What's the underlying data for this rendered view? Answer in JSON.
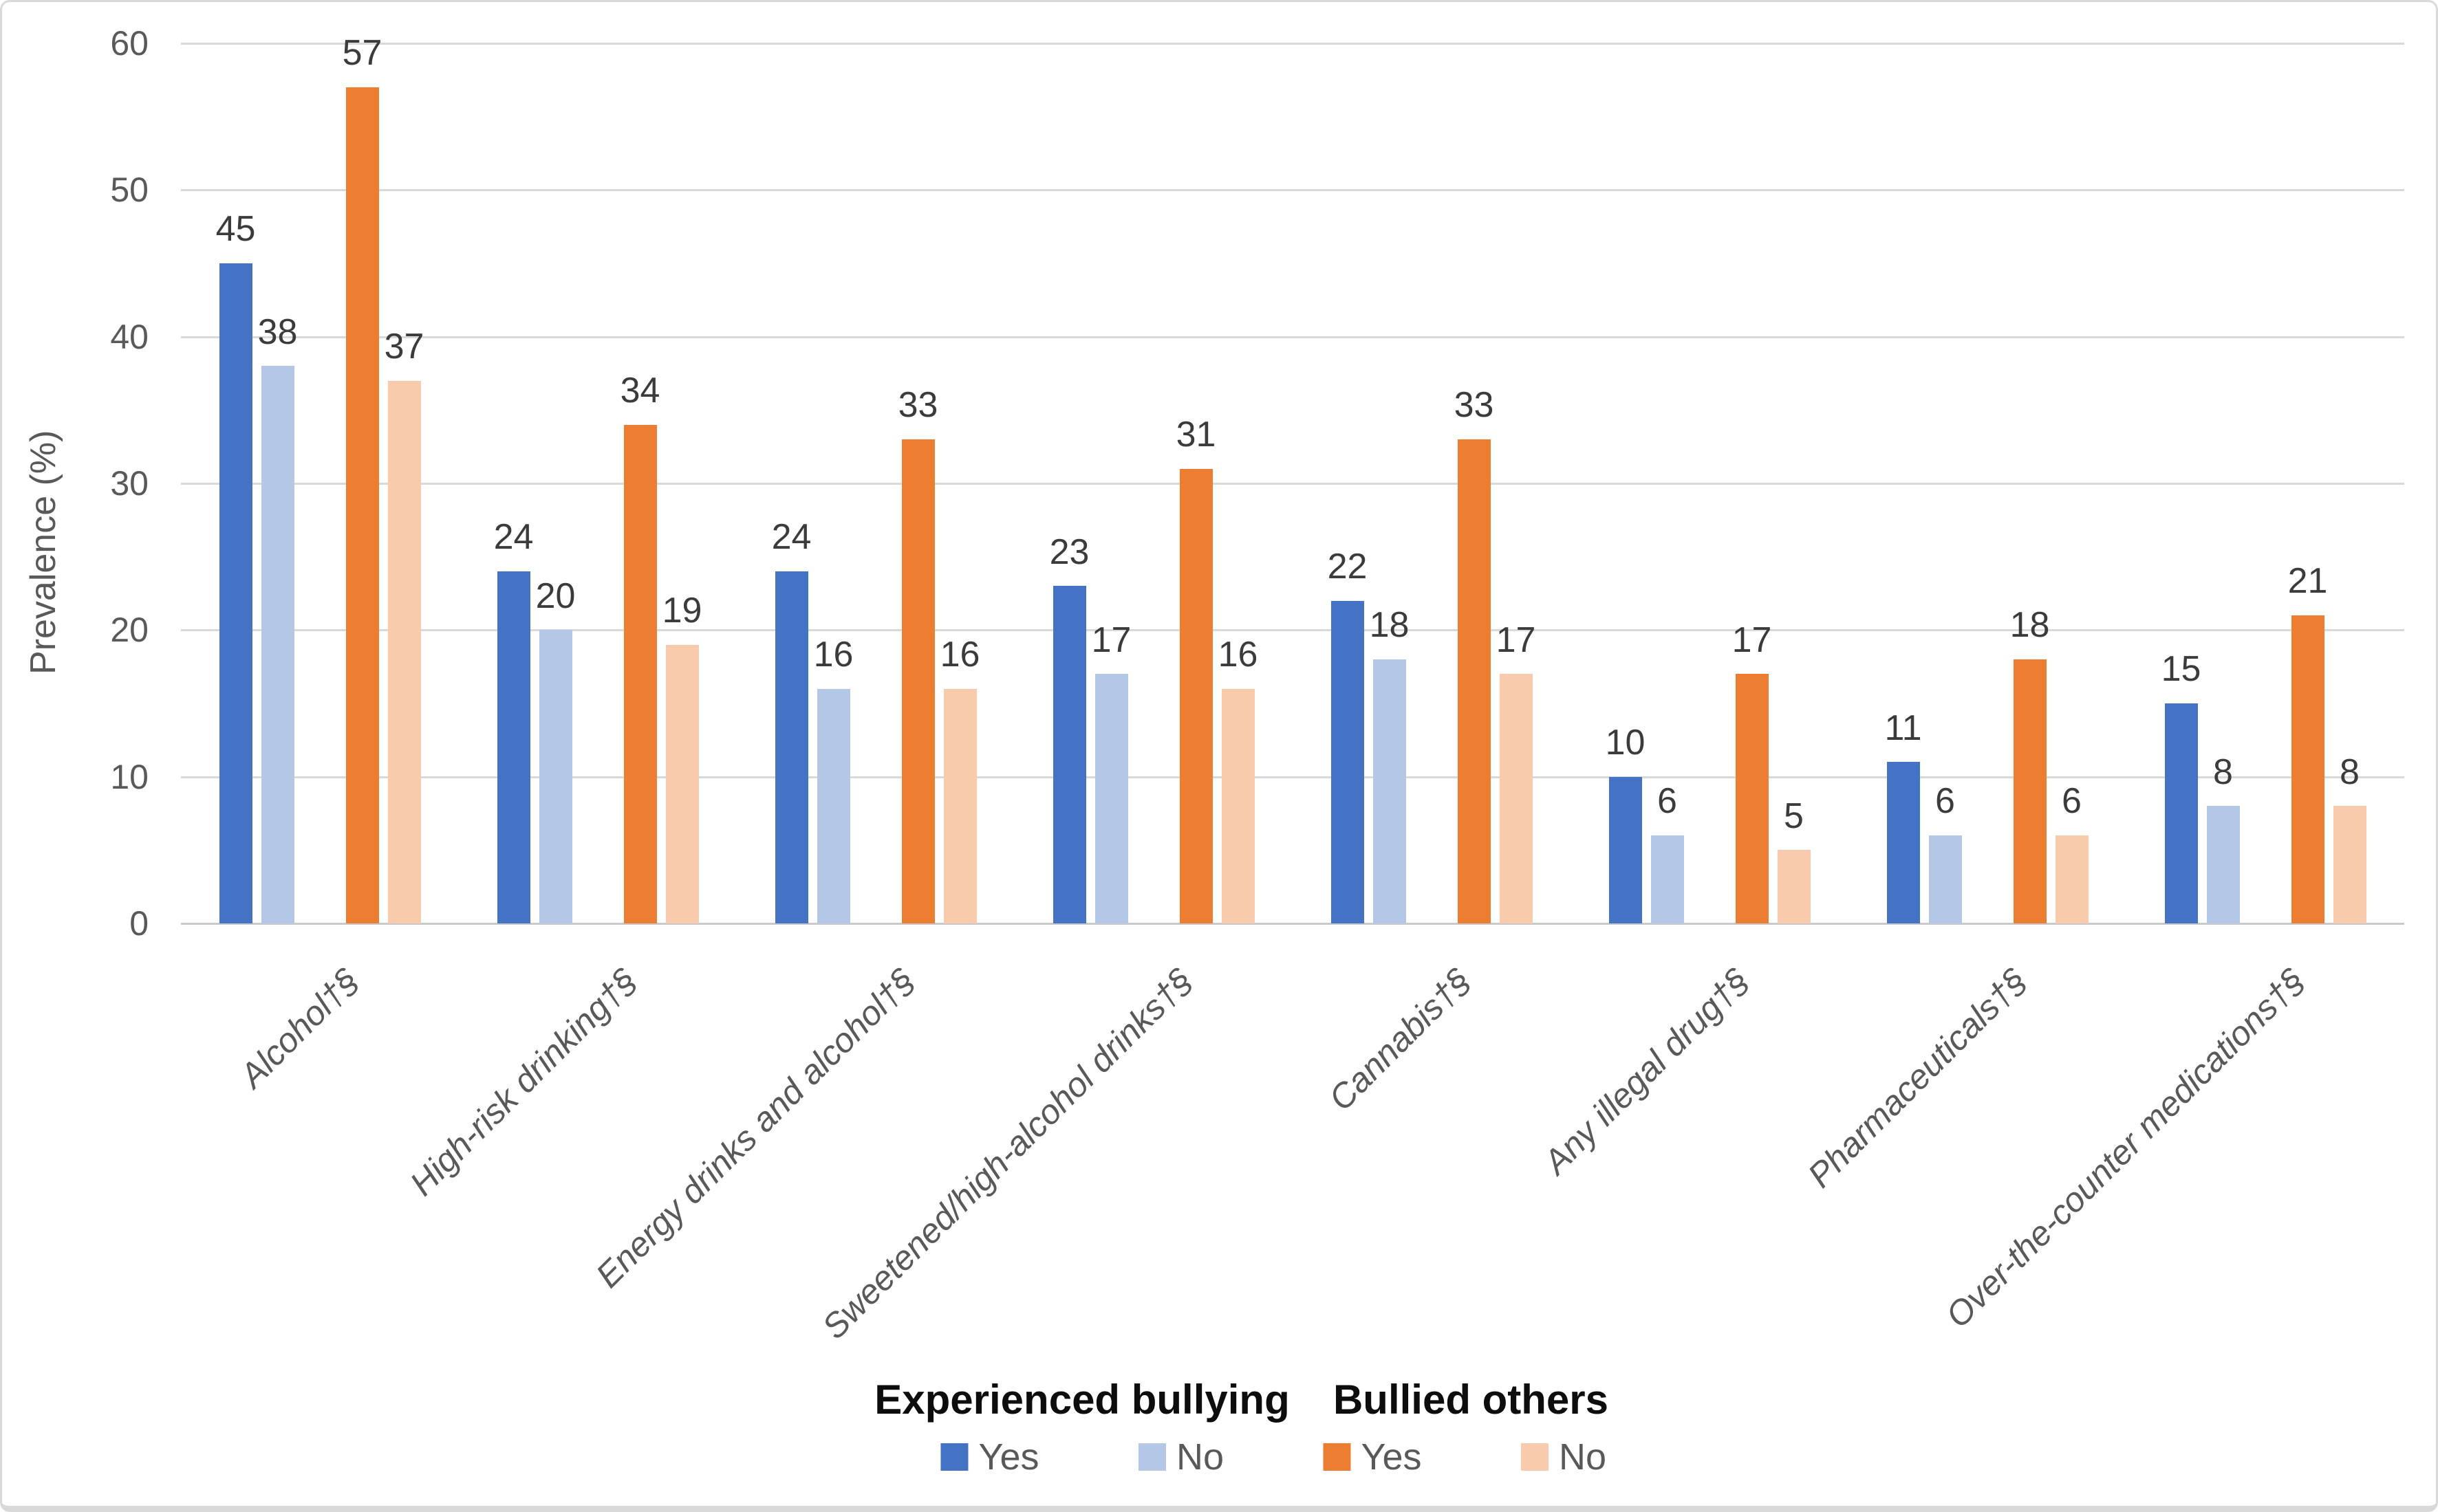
{
  "figure": {
    "background": "#FFFFFF",
    "border_color": "#D9D9D9",
    "gridline_color": "#D9D9D9",
    "axis_line_color": "#C9C9C9",
    "tick_label_color": "#595959",
    "data_label_color": "#3B3B3B",
    "category_label_color": "#595959",
    "legend_title_color": "#0D0D0D",
    "legend_item_color": "#595959"
  },
  "chart_data": {
    "type": "bar",
    "title": "",
    "xlabel": "",
    "ylabel": "Prevalence (%)",
    "ylim": [
      0,
      60
    ],
    "yticks": [
      0,
      10,
      20,
      30,
      40,
      50,
      60
    ],
    "grid": true,
    "legend_position": "bottom",
    "categories": [
      "Alcohol†§",
      "High-risk drinking†§",
      "Energy drinks and alcohol†§",
      "Sweetened/high-alcohol drinks†§",
      "Cannabis†§",
      "Any illegal drug†§",
      "Pharmaceuticals†§",
      "Over-the-counter medications†§"
    ],
    "series": [
      {
        "name": "Experienced bullying – Yes",
        "legend_group": "Experienced bullying",
        "legend_label": "Yes",
        "color": "#4472C4",
        "values": [
          45,
          24,
          24,
          23,
          22,
          10,
          11,
          15
        ]
      },
      {
        "name": "Experienced bullying – No",
        "legend_group": "Experienced bullying",
        "legend_label": "No",
        "color": "#B4C7E7",
        "values": [
          38,
          20,
          16,
          17,
          18,
          6,
          6,
          8
        ]
      },
      {
        "name": "Bullied others – Yes",
        "legend_group": "Bullied others",
        "legend_label": "Yes",
        "color": "#ED7D31",
        "values": [
          57,
          34,
          33,
          31,
          33,
          17,
          18,
          21
        ]
      },
      {
        "name": "Bullied others – No",
        "legend_group": "Bullied others",
        "legend_label": "No",
        "color": "#F8CBAD",
        "values": [
          37,
          19,
          16,
          16,
          17,
          5,
          6,
          8
        ]
      }
    ],
    "legend": {
      "groups": [
        {
          "title": "Experienced bullying",
          "items": [
            {
              "label": "Yes",
              "color": "#4472C4"
            },
            {
              "label": "No",
              "color": "#B4C7E7"
            }
          ]
        },
        {
          "title": "Bullied others",
          "items": [
            {
              "label": "Yes",
              "color": "#ED7D31"
            },
            {
              "label": "No",
              "color": "#F8CBAD"
            }
          ]
        }
      ]
    }
  }
}
